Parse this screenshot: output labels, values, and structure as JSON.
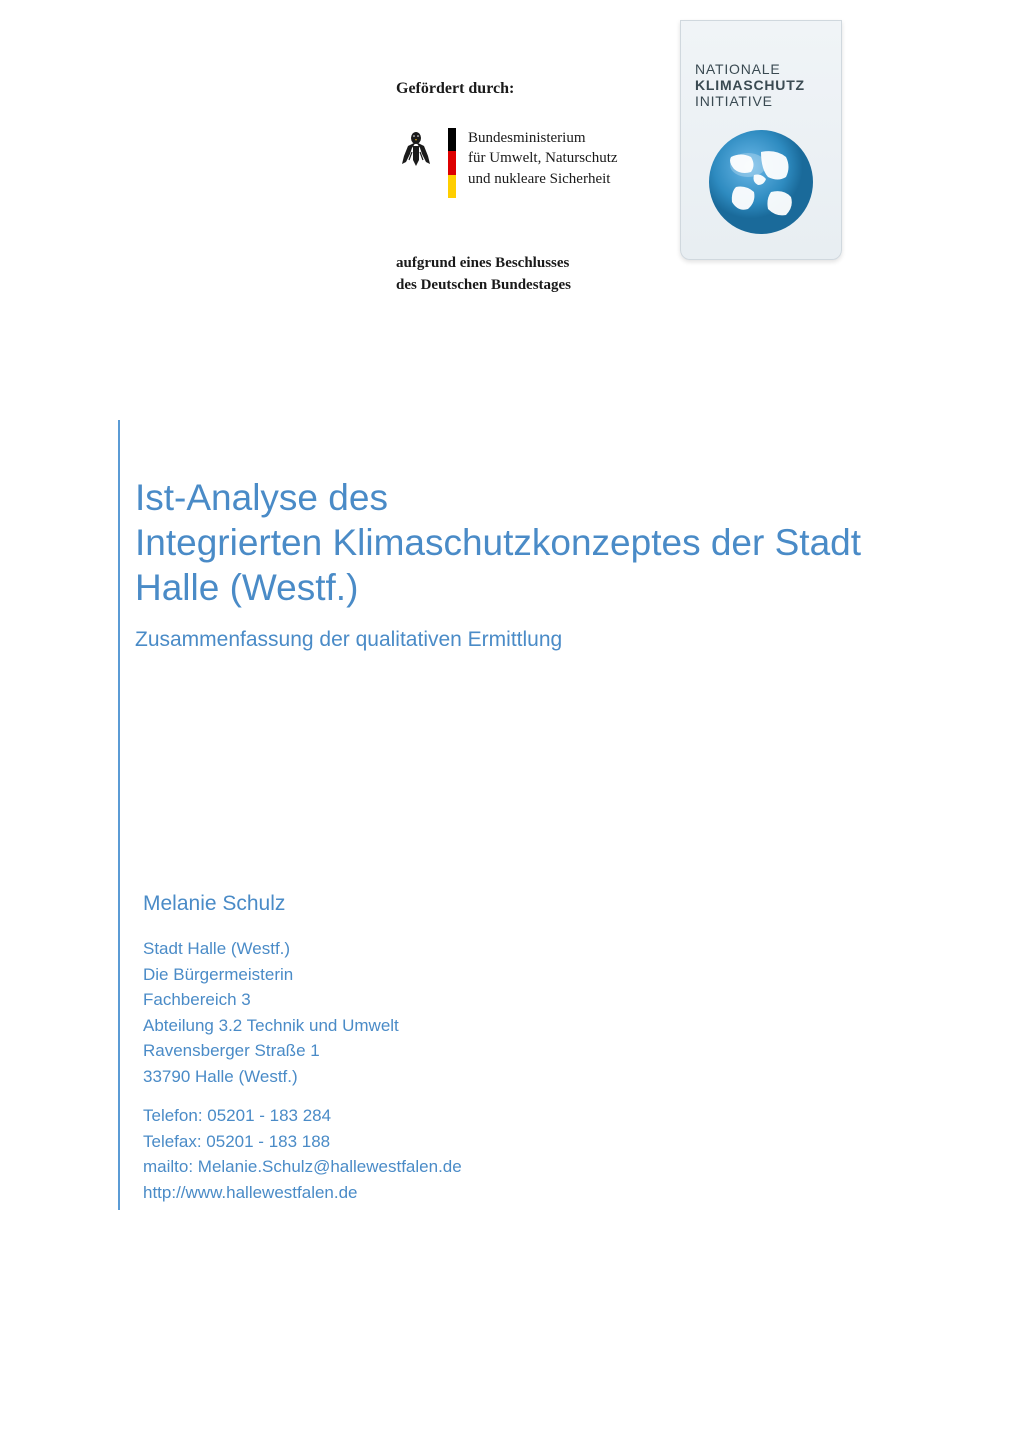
{
  "sponsor": {
    "label": "Gefördert durch:",
    "ministry_line1": "Bundesministerium",
    "ministry_line2": "für Umwelt, Naturschutz",
    "ministry_line3": "und nukleare Sicherheit",
    "resolution_line1": "aufgrund eines Beschlusses",
    "resolution_line2": "des Deutschen Bundestages"
  },
  "nki": {
    "line1": "NATIONALE",
    "line2": "KLIMASCHUTZ",
    "line3": "INITIATIVE"
  },
  "title": {
    "main": "Ist-Analyse des\nIntegrierten Klimaschutzkonzeptes der Stadt Halle (Westf.)",
    "subtitle": "Zusammenfassung der qualitativen Ermittlung"
  },
  "author": {
    "name": "Melanie Schulz",
    "org": "Stadt Halle (Westf.)",
    "role": "Die Bürgermeisterin",
    "department": "Fachbereich 3",
    "division": "Abteilung 3.2 Technik und Umwelt",
    "street": "Ravensberger Straße 1",
    "city": "33790 Halle (Westf.)",
    "phone": "Telefon: 05201 - 183 284",
    "fax": "Telefax:  05201 - 183 188",
    "email": "mailto: Melanie.Schulz@hallewestfalen.de",
    "website": "http://www.hallewestfalen.de"
  },
  "colors": {
    "primary_blue": "#4a8bc7",
    "border_blue": "#5b9bd5",
    "text_dark": "#1a1a1a",
    "nki_text": "#3a4a52",
    "globe_blue": "#2e8bc0",
    "background": "#ffffff"
  },
  "typography": {
    "title_fontsize": 37,
    "subtitle_fontsize": 21,
    "author_fontsize": 21,
    "contact_fontsize": 17,
    "sponsor_fontsize": 16,
    "ministry_fontsize": 15
  }
}
